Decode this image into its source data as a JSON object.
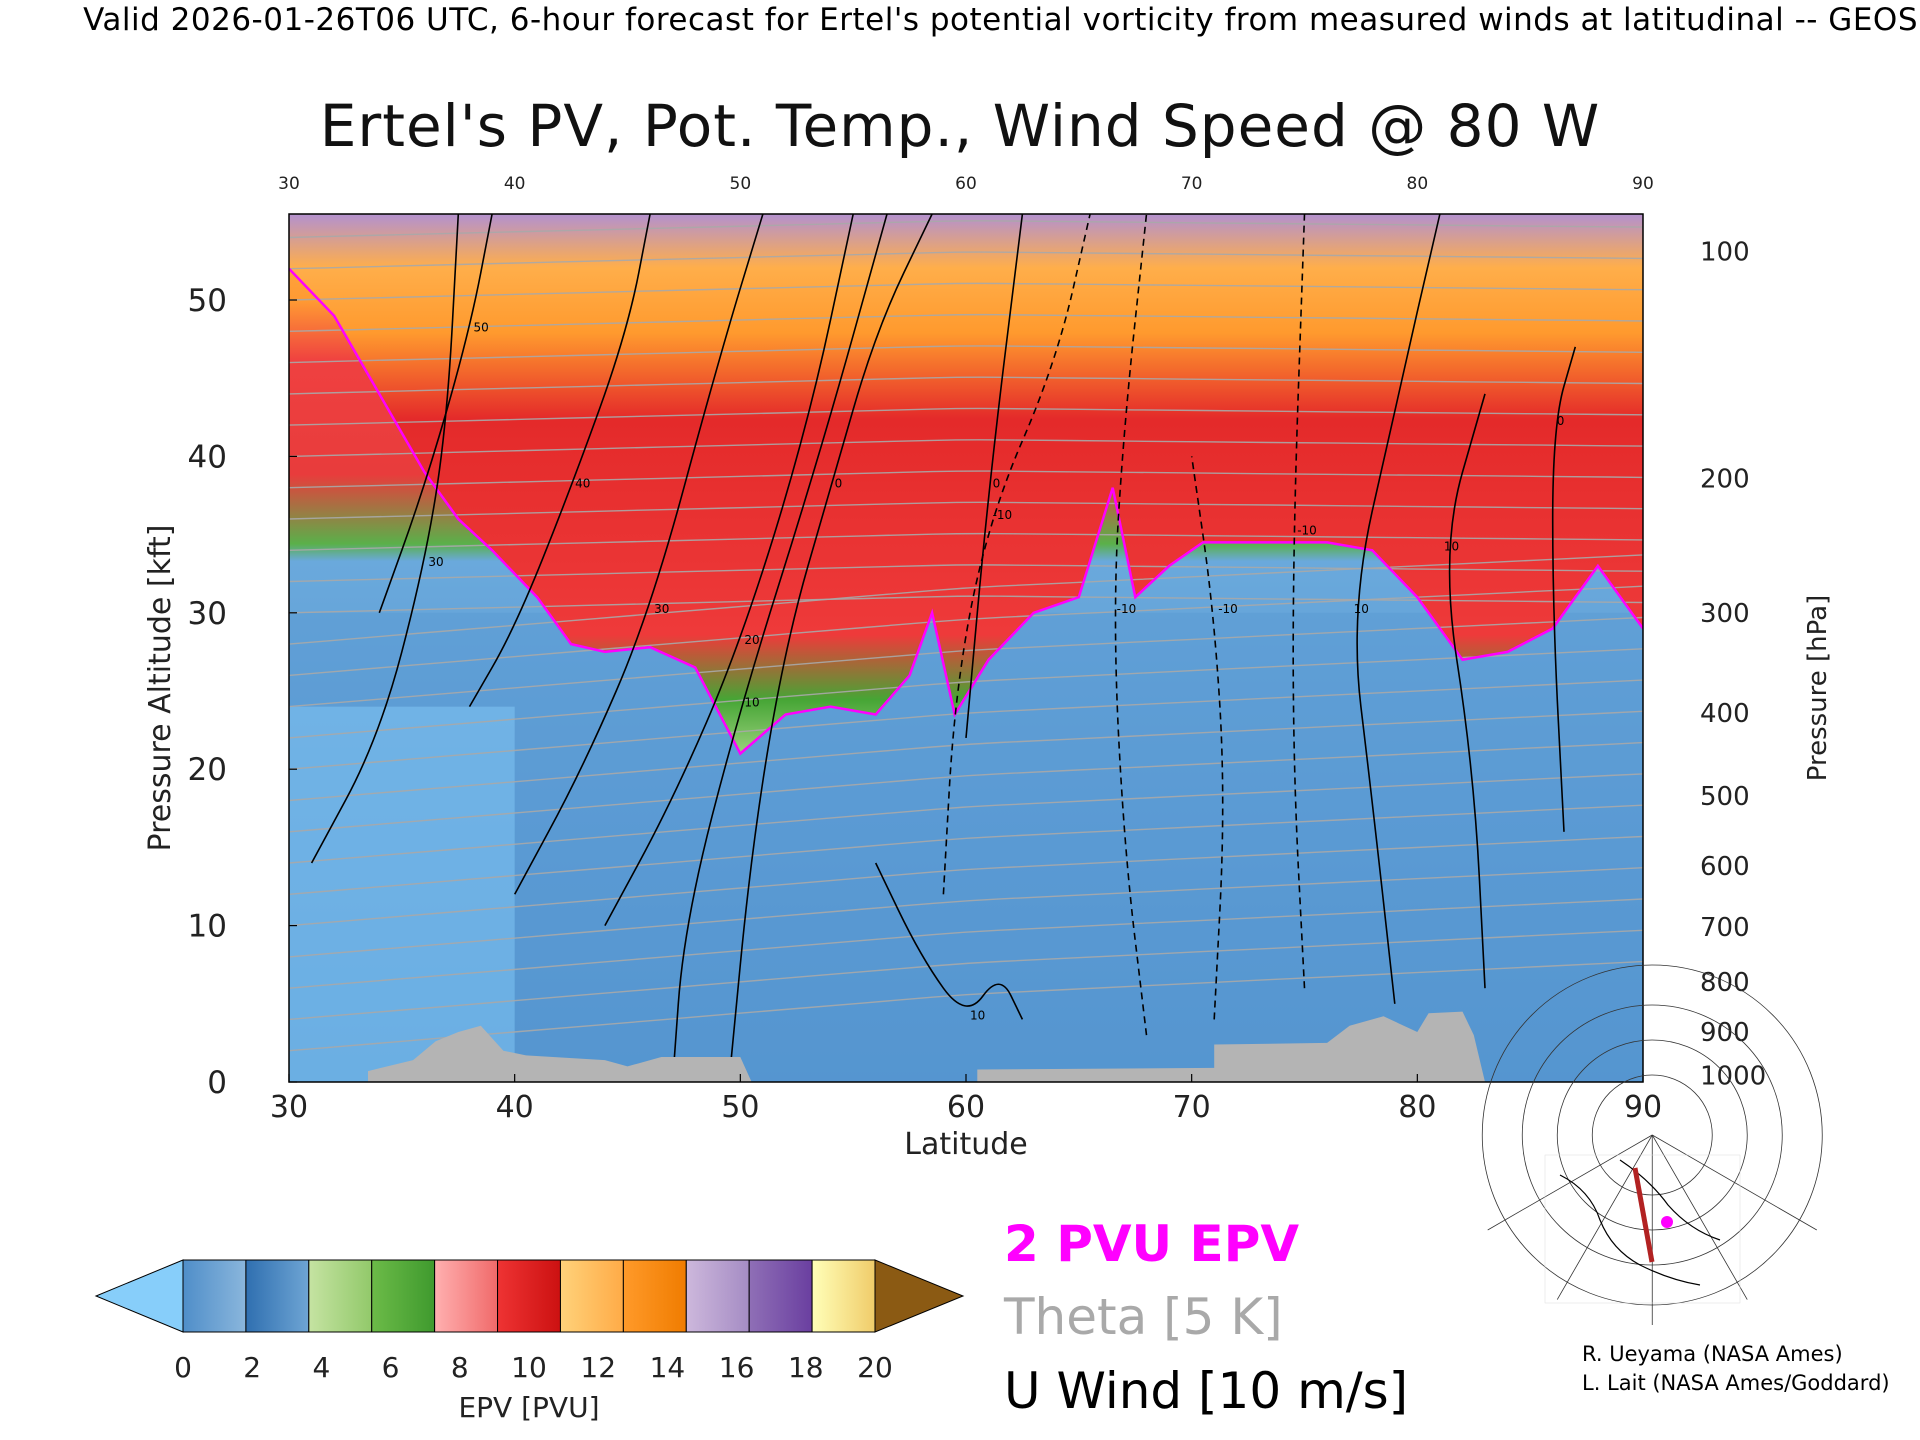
{
  "header": {
    "text": "Valid 2026-01-26T06 UTC, 6-hour forecast for Ertel's potential vorticity from measured winds at latitudinal -- GEOS"
  },
  "title": "Ertel's PV, Pot. Temp., Wind Speed @ 80 W",
  "legend": {
    "pv_label": "2 PVU EPV",
    "theta_label": "Theta [5 K]",
    "u_label": "U Wind [10 m/s]",
    "pv_color": "#ff00ff",
    "theta_color": "#a9a9a9",
    "u_color": "#000000"
  },
  "colorbar": {
    "label": "EPV [PVU]",
    "ticks": [
      "0",
      "2",
      "4",
      "6",
      "8",
      "10",
      "12",
      "14",
      "16",
      "18",
      "20"
    ],
    "under_color": "#87cefa",
    "over_color": "#8b5a13",
    "bins": [
      [
        "#4f8ec9",
        "#8ab6dc"
      ],
      [
        "#2f6fb0",
        "#6ea5d4"
      ],
      [
        "#c5e3a2",
        "#92c96a"
      ],
      [
        "#6cbb48",
        "#3f9a2e"
      ],
      [
        "#ffb0b0",
        "#f06a6a"
      ],
      [
        "#ee3333",
        "#cc1111"
      ],
      [
        "#ffd27a",
        "#ffab47"
      ],
      [
        "#ff9a2a",
        "#f07c00"
      ],
      [
        "#cdb8dc",
        "#a58cc4"
      ],
      [
        "#8f6fb6",
        "#6a3fa0"
      ],
      [
        "#ffffb8",
        "#f0cc6a"
      ]
    ]
  },
  "credits": {
    "line1": "R. Ueyama (NASA Ames)",
    "line2": "L. Lait (NASA Ames/Goddard)"
  },
  "map_inset": {
    "section_line_color": "#b22222",
    "marker_color": "#ff00ff"
  },
  "chart_data": {
    "type": "heatmap",
    "title": "Ertel's PV, Pot. Temp., Wind Speed @ 80 W",
    "xlabel": "Latitude",
    "ylabel": "Pressure Altitude [kft]",
    "y2label": "Pressure [hPa]",
    "xlim": [
      30,
      90
    ],
    "ylim": [
      0,
      55.5
    ],
    "x_ticks": [
      "30",
      "40",
      "50",
      "60",
      "70",
      "80",
      "90"
    ],
    "y_ticks": [
      "0",
      "10",
      "20",
      "30",
      "40",
      "50"
    ],
    "pressure_ticks": [
      {
        "label": "100",
        "kft": 53.1
      },
      {
        "label": "200",
        "kft": 38.6
      },
      {
        "label": "300",
        "kft": 30.0
      },
      {
        "label": "400",
        "kft": 23.6
      },
      {
        "label": "500",
        "kft": 18.3
      },
      {
        "label": "600",
        "kft": 13.8
      },
      {
        "label": "700",
        "kft": 9.9
      },
      {
        "label": "800",
        "kft": 6.4
      },
      {
        "label": "900",
        "kft": 3.2
      },
      {
        "label": "1000",
        "kft": 0.4
      }
    ],
    "tropopause_2pvu_kft": [
      {
        "lat": 30,
        "kft": 52
      },
      {
        "lat": 32,
        "kft": 49
      },
      {
        "lat": 34,
        "kft": 44
      },
      {
        "lat": 36,
        "kft": 39
      },
      {
        "lat": 37.5,
        "kft": 36
      },
      {
        "lat": 39,
        "kft": 34
      },
      {
        "lat": 41,
        "kft": 31
      },
      {
        "lat": 42.5,
        "kft": 28
      },
      {
        "lat": 44,
        "kft": 27.5
      },
      {
        "lat": 46,
        "kft": 27.8
      },
      {
        "lat": 48,
        "kft": 26.5
      },
      {
        "lat": 50,
        "kft": 21
      },
      {
        "lat": 52,
        "kft": 23.5
      },
      {
        "lat": 54,
        "kft": 24
      },
      {
        "lat": 56,
        "kft": 23.5
      },
      {
        "lat": 57.5,
        "kft": 26
      },
      {
        "lat": 58.5,
        "kft": 30
      },
      {
        "lat": 59.5,
        "kft": 23.5
      },
      {
        "lat": 61,
        "kft": 27
      },
      {
        "lat": 63,
        "kft": 30
      },
      {
        "lat": 65,
        "kft": 31
      },
      {
        "lat": 66.5,
        "kft": 38
      },
      {
        "lat": 67.5,
        "kft": 31
      },
      {
        "lat": 69,
        "kft": 33
      },
      {
        "lat": 70.5,
        "kft": 34.5
      },
      {
        "lat": 73,
        "kft": 34.5
      },
      {
        "lat": 76,
        "kft": 34.5
      },
      {
        "lat": 78,
        "kft": 34
      },
      {
        "lat": 80,
        "kft": 31
      },
      {
        "lat": 82,
        "kft": 27
      },
      {
        "lat": 84,
        "kft": 27.5
      },
      {
        "lat": 86,
        "kft": 29
      },
      {
        "lat": 88,
        "kft": 33
      },
      {
        "lat": 89,
        "kft": 31
      },
      {
        "lat": 90,
        "kft": 29
      }
    ],
    "terrain_kft": [
      {
        "lat": 30,
        "kft": 0
      },
      {
        "lat": 33.5,
        "kft": 0
      },
      {
        "lat": 33.5,
        "kft": 0.7
      },
      {
        "lat": 35.5,
        "kft": 1.4
      },
      {
        "lat": 36.5,
        "kft": 2.6
      },
      {
        "lat": 37.5,
        "kft": 3.2
      },
      {
        "lat": 38.5,
        "kft": 3.6
      },
      {
        "lat": 39.5,
        "kft": 2.0
      },
      {
        "lat": 40.5,
        "kft": 1.7
      },
      {
        "lat": 44,
        "kft": 1.4
      },
      {
        "lat": 45,
        "kft": 1.0
      },
      {
        "lat": 46.5,
        "kft": 1.6
      },
      {
        "lat": 50,
        "kft": 1.6
      },
      {
        "lat": 50.5,
        "kft": 0
      },
      {
        "lat": 60.5,
        "kft": 0
      },
      {
        "lat": 60.5,
        "kft": 0.8
      },
      {
        "lat": 71,
        "kft": 0.9
      },
      {
        "lat": 71,
        "kft": 2.4
      },
      {
        "lat": 76,
        "kft": 2.5
      },
      {
        "lat": 77,
        "kft": 3.6
      },
      {
        "lat": 78.5,
        "kft": 4.2
      },
      {
        "lat": 80,
        "kft": 3.2
      },
      {
        "lat": 80.5,
        "kft": 4.4
      },
      {
        "lat": 82,
        "kft": 4.5
      },
      {
        "lat": 82.5,
        "kft": 3.0
      },
      {
        "lat": 83,
        "kft": 0
      }
    ],
    "u_wind_contours_10ms": [
      {
        "label": "0",
        "solid": true,
        "points": [
          [
            49.5,
            0
          ],
          [
            50.5,
            15
          ],
          [
            52,
            28
          ],
          [
            54,
            38
          ],
          [
            56,
            48
          ],
          [
            58.5,
            55.5
          ]
        ]
      },
      {
        "label": "10",
        "solid": true,
        "points": [
          [
            47,
            0
          ],
          [
            47.5,
            10
          ],
          [
            50,
            24
          ],
          [
            53.5,
            40
          ],
          [
            56.5,
            55.5
          ]
        ]
      },
      {
        "label": "10",
        "solid": true,
        "points": [
          [
            56,
            14
          ],
          [
            58,
            8
          ],
          [
            60,
            4
          ],
          [
            61.5,
            7
          ],
          [
            62.5,
            4
          ]
        ]
      },
      {
        "label": "0",
        "solid": true,
        "points": [
          [
            60,
            22
          ],
          [
            61,
            38
          ],
          [
            62.5,
            55.5
          ]
        ]
      },
      {
        "label": "20",
        "solid": true,
        "points": [
          [
            44,
            10
          ],
          [
            47,
            18
          ],
          [
            50,
            28
          ],
          [
            53,
            42
          ],
          [
            55,
            55.5
          ]
        ]
      },
      {
        "label": "30",
        "solid": true,
        "points": [
          [
            40,
            12
          ],
          [
            43,
            20
          ],
          [
            46,
            30
          ],
          [
            49,
            46
          ],
          [
            51,
            55.5
          ]
        ]
      },
      {
        "label": "40",
        "solid": true,
        "points": [
          [
            38,
            24
          ],
          [
            40,
            29
          ],
          [
            42.5,
            38
          ],
          [
            45,
            48
          ],
          [
            46,
            55.5
          ]
        ]
      },
      {
        "label": "50",
        "solid": true,
        "points": [
          [
            34,
            30
          ],
          [
            36,
            38
          ],
          [
            38,
            48
          ],
          [
            39,
            55.5
          ]
        ]
      },
      {
        "label": "30",
        "solid": true,
        "points": [
          [
            31,
            14
          ],
          [
            34,
            22
          ],
          [
            36,
            33
          ],
          [
            37,
            42
          ],
          [
            37.5,
            55.5
          ]
        ]
      },
      {
        "label": "-10",
        "solid": false,
        "points": [
          [
            59,
            12
          ],
          [
            59.5,
            25
          ],
          [
            61,
            36
          ],
          [
            64,
            46
          ],
          [
            65.5,
            55.5
          ]
        ]
      },
      {
        "label": "-10",
        "solid": false,
        "points": [
          [
            68,
            3
          ],
          [
            67,
            15
          ],
          [
            66.5,
            30
          ],
          [
            67,
            42
          ],
          [
            68,
            55.5
          ]
        ]
      },
      {
        "label": "-10",
        "solid": false,
        "points": [
          [
            71,
            4
          ],
          [
            71.5,
            18
          ],
          [
            71,
            30
          ],
          [
            70,
            40
          ]
        ]
      },
      {
        "label": "-10",
        "solid": false,
        "points": [
          [
            75,
            6
          ],
          [
            74.5,
            20
          ],
          [
            74.5,
            35
          ],
          [
            75,
            55.5
          ]
        ]
      },
      {
        "label": "10",
        "solid": true,
        "points": [
          [
            79,
            5
          ],
          [
            78,
            18
          ],
          [
            77,
            30
          ],
          [
            79,
            43
          ],
          [
            81,
            55.5
          ]
        ]
      },
      {
        "label": "10",
        "solid": true,
        "points": [
          [
            83,
            6
          ],
          [
            82.5,
            20
          ],
          [
            81,
            34
          ],
          [
            83,
            44
          ]
        ]
      },
      {
        "label": "0",
        "solid": true,
        "points": [
          [
            86.5,
            16
          ],
          [
            86,
            30
          ],
          [
            86,
            42
          ],
          [
            87,
            47
          ]
        ]
      }
    ]
  }
}
